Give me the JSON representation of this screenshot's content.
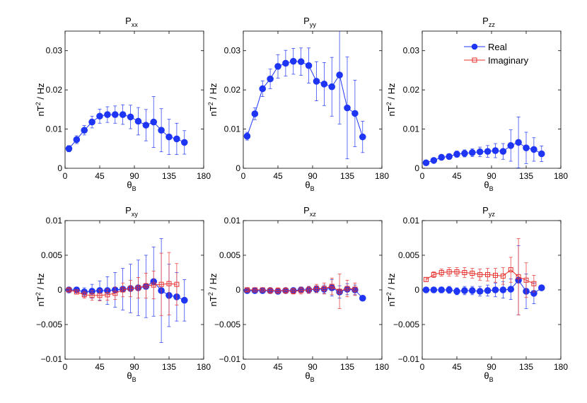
{
  "chart_data": [
    {
      "type": "scatter",
      "title": "P",
      "title_sub": "xx",
      "xlabel": "θ",
      "xlabel_sub": "B",
      "ylabel": "nT",
      "ylabel_sup": "2",
      "ylabel_rest": " / Hz",
      "xlim": [
        0,
        180
      ],
      "ylim": [
        0,
        0.035
      ],
      "xticks": [
        0,
        45,
        90,
        135,
        180
      ],
      "yticks": [
        0,
        0.01,
        0.02,
        0.03
      ],
      "ytick_labels": [
        "0",
        "0.01",
        "0.02",
        "0.03"
      ],
      "series": [
        {
          "name": "Real",
          "x": [
            5,
            15,
            25,
            35,
            45,
            55,
            65,
            75,
            85,
            95,
            105,
            115,
            125,
            135,
            145,
            155
          ],
          "y": [
            0.005,
            0.0073,
            0.0097,
            0.0118,
            0.0133,
            0.0137,
            0.0137,
            0.0137,
            0.0131,
            0.012,
            0.011,
            0.0118,
            0.0097,
            0.008,
            0.0075,
            0.0066
          ],
          "err": [
            0.0008,
            0.001,
            0.0012,
            0.0015,
            0.0018,
            0.002,
            0.0022,
            0.0025,
            0.003,
            0.0035,
            0.004,
            0.0065,
            0.0055,
            0.0045,
            0.004,
            0.003
          ]
        }
      ]
    },
    {
      "type": "scatter",
      "title": "P",
      "title_sub": "yy",
      "xlabel": "θ",
      "xlabel_sub": "B",
      "ylabel": "nT",
      "ylabel_sup": "2",
      "ylabel_rest": " / Hz",
      "xlim": [
        0,
        180
      ],
      "ylim": [
        0,
        0.035
      ],
      "xticks": [
        0,
        45,
        90,
        135,
        180
      ],
      "yticks": [
        0,
        0.01,
        0.02,
        0.03
      ],
      "ytick_labels": [
        "0",
        "0.01",
        "0.02",
        "0.03"
      ],
      "series": [
        {
          "name": "Real",
          "x": [
            5,
            15,
            25,
            35,
            45,
            55,
            65,
            75,
            85,
            95,
            105,
            115,
            125,
            135,
            145,
            155
          ],
          "y": [
            0.0082,
            0.0139,
            0.0203,
            0.0228,
            0.026,
            0.0268,
            0.0273,
            0.0272,
            0.0262,
            0.0222,
            0.0215,
            0.0208,
            0.0238,
            0.0154,
            0.014,
            0.008
          ],
          "err": [
            0.001,
            0.0015,
            0.002,
            0.0025,
            0.003,
            0.0033,
            0.0033,
            0.0035,
            0.0045,
            0.005,
            0.0055,
            0.0075,
            0.0125,
            0.013,
            0.0085,
            0.004
          ]
        }
      ]
    },
    {
      "type": "scatter",
      "title": "P",
      "title_sub": "zz",
      "xlabel": "θ",
      "xlabel_sub": "B",
      "ylabel": "nT",
      "ylabel_sup": "2",
      "ylabel_rest": " / Hz",
      "xlim": [
        0,
        180
      ],
      "ylim": [
        0,
        0.035
      ],
      "xticks": [
        0,
        45,
        90,
        135,
        180
      ],
      "yticks": [
        0,
        0.01,
        0.02,
        0.03
      ],
      "ytick_labels": [
        "0",
        "0.01",
        "0.02",
        "0.03"
      ],
      "legend": "top-right",
      "series": [
        {
          "name": "Real",
          "x": [
            5,
            15,
            25,
            35,
            45,
            55,
            65,
            75,
            85,
            95,
            105,
            115,
            125,
            135,
            145,
            155
          ],
          "y": [
            0.0014,
            0.002,
            0.0028,
            0.003,
            0.0036,
            0.0038,
            0.004,
            0.0042,
            0.0043,
            0.0045,
            0.0043,
            0.0058,
            0.0066,
            0.0052,
            0.0048,
            0.0037
          ],
          "err": [
            0.0004,
            0.0005,
            0.0006,
            0.0007,
            0.0008,
            0.0009,
            0.001,
            0.0012,
            0.0015,
            0.0018,
            0.002,
            0.004,
            0.0065,
            0.004,
            0.003,
            0.002
          ]
        }
      ]
    },
    {
      "type": "scatter",
      "title": "P",
      "title_sub": "xy",
      "xlabel": "θ",
      "xlabel_sub": "B",
      "ylabel": "nT",
      "ylabel_sup": "2",
      "ylabel_rest": " / Hz",
      "xlim": [
        0,
        180
      ],
      "ylim": [
        -0.01,
        0.01
      ],
      "xticks": [
        0,
        45,
        90,
        135,
        180
      ],
      "yticks": [
        -0.01,
        -0.005,
        0,
        0.005,
        0.01
      ],
      "ytick_labels": [
        "−0.01",
        "−0.005",
        "0",
        "0.005",
        "0.01"
      ],
      "series": [
        {
          "name": "Real",
          "x": [
            5,
            15,
            25,
            35,
            45,
            55,
            65,
            75,
            85,
            95,
            105,
            115,
            125,
            135,
            145,
            155
          ],
          "y": [
            0,
            0,
            -0.0003,
            -0.0002,
            -0.0001,
            -0.0001,
            0,
            0.0001,
            0.0002,
            0.0003,
            0.0005,
            0.0012,
            -0.0001,
            -0.0008,
            -0.001,
            -0.0015
          ],
          "err": [
            0.0003,
            0.0004,
            0.0006,
            0.001,
            0.0014,
            0.002,
            0.0025,
            0.003,
            0.0035,
            0.004,
            0.0045,
            0.005,
            0.0075,
            0.0045,
            0.0035,
            0.003
          ]
        },
        {
          "name": "Imaginary",
          "x": [
            5,
            15,
            25,
            35,
            45,
            55,
            65,
            75,
            85,
            95,
            105,
            115,
            125,
            135,
            145
          ],
          "y": [
            0,
            -0.0003,
            -0.0007,
            -0.0008,
            -0.0008,
            -0.0007,
            -0.0005,
            0,
            0.0002,
            0.0003,
            0.0006,
            0.0007,
            0.0008,
            0.0009,
            0.0008
          ],
          "err": [
            0.0002,
            0.0003,
            0.0005,
            0.0007,
            0.0008,
            0.0008,
            0.0009,
            0.001,
            0.0012,
            0.0015,
            0.0018,
            0.002,
            0.0045,
            0.0045,
            0.003
          ]
        }
      ]
    },
    {
      "type": "scatter",
      "title": "P",
      "title_sub": "xz",
      "xlabel": "θ",
      "xlabel_sub": "B",
      "ylabel": "nT",
      "ylabel_sup": "2",
      "ylabel_rest": " / Hz",
      "xlim": [
        0,
        180
      ],
      "ylim": [
        -0.01,
        0.01
      ],
      "xticks": [
        0,
        45,
        90,
        135,
        180
      ],
      "yticks": [
        -0.01,
        -0.005,
        0,
        0.005,
        0.01
      ],
      "ytick_labels": [
        "−0.01",
        "−0.005",
        "0",
        "0.005",
        "0.01"
      ],
      "series": [
        {
          "name": "Real",
          "x": [
            5,
            15,
            25,
            35,
            45,
            55,
            65,
            75,
            85,
            95,
            105,
            115,
            125,
            135,
            145,
            155
          ],
          "y": [
            -0.0001,
            -0.0001,
            -0.0001,
            -0.0001,
            -0.0002,
            -0.0001,
            -0.0001,
            0,
            0,
            0.0001,
            0.0001,
            0.0003,
            -0.0003,
            0.0001,
            0,
            -0.0012
          ],
          "err": [
            0.0002,
            0.0002,
            0.0003,
            0.0003,
            0.0003,
            0.0003,
            0.0004,
            0.0004,
            0.0005,
            0.0005,
            0.0006,
            0.0012,
            0.0009,
            0.0008,
            0.0007,
            0.0004
          ]
        },
        {
          "name": "Imaginary",
          "x": [
            5,
            15,
            25,
            35,
            45,
            55,
            65,
            75,
            85,
            95,
            105,
            115,
            125,
            135,
            145
          ],
          "y": [
            0,
            0,
            0,
            -0.0001,
            -0.0001,
            -0.0001,
            -0.0002,
            -0.0001,
            0,
            0.0002,
            0.0002,
            0.0005,
            -0.0002,
            0.0002,
            0.0001
          ],
          "err": [
            0.0002,
            0.0003,
            0.0003,
            0.0004,
            0.0004,
            0.0004,
            0.0004,
            0.0005,
            0.0005,
            0.0006,
            0.0008,
            0.0012,
            0.0025,
            0.0012,
            0.0009
          ]
        }
      ]
    },
    {
      "type": "scatter",
      "title": "P",
      "title_sub": "yz",
      "xlabel": "θ",
      "xlabel_sub": "B",
      "ylabel": "nT",
      "ylabel_sup": "2",
      "ylabel_rest": " / Hz",
      "xlim": [
        0,
        180
      ],
      "ylim": [
        -0.01,
        0.01
      ],
      "xticks": [
        0,
        45,
        90,
        135,
        180
      ],
      "yticks": [
        -0.01,
        -0.005,
        0,
        0.005,
        0.01
      ],
      "ytick_labels": [
        "−0.01",
        "−0.005",
        "0",
        "0.005",
        "0.01"
      ],
      "series": [
        {
          "name": "Real",
          "x": [
            5,
            15,
            25,
            35,
            45,
            55,
            65,
            75,
            85,
            95,
            105,
            115,
            125,
            135,
            145,
            155
          ],
          "y": [
            0,
            0,
            0,
            0,
            -0.0002,
            -0.0001,
            -0.0001,
            -0.0002,
            -0.0001,
            0,
            0,
            0.0001,
            0.0014,
            -0.0002,
            -0.0005,
            0.0003
          ],
          "err": [
            0.0002,
            0.0003,
            0.0004,
            0.0005,
            0.0005,
            0.0006,
            0.0006,
            0.0007,
            0.0008,
            0.001,
            0.0012,
            0.0015,
            0.005,
            0.0025,
            0.0015,
            0.0003
          ]
        },
        {
          "name": "Imaginary",
          "x": [
            5,
            15,
            25,
            35,
            45,
            55,
            65,
            75,
            85,
            95,
            105,
            115,
            125,
            135,
            145
          ],
          "y": [
            0.0015,
            0.0022,
            0.0025,
            0.0026,
            0.0026,
            0.0025,
            0.0024,
            0.0022,
            0.0022,
            0.0021,
            0.002,
            0.0029,
            0.0019,
            0.0014,
            0.0009
          ],
          "err": [
            0.0003,
            0.0004,
            0.0005,
            0.0006,
            0.0006,
            0.0007,
            0.0007,
            0.0008,
            0.0009,
            0.001,
            0.0012,
            0.0018,
            0.0055,
            0.0025,
            0.0012
          ]
        }
      ]
    }
  ],
  "colors": {
    "real": "#1f35f5",
    "imaginary": "#e8302c"
  }
}
